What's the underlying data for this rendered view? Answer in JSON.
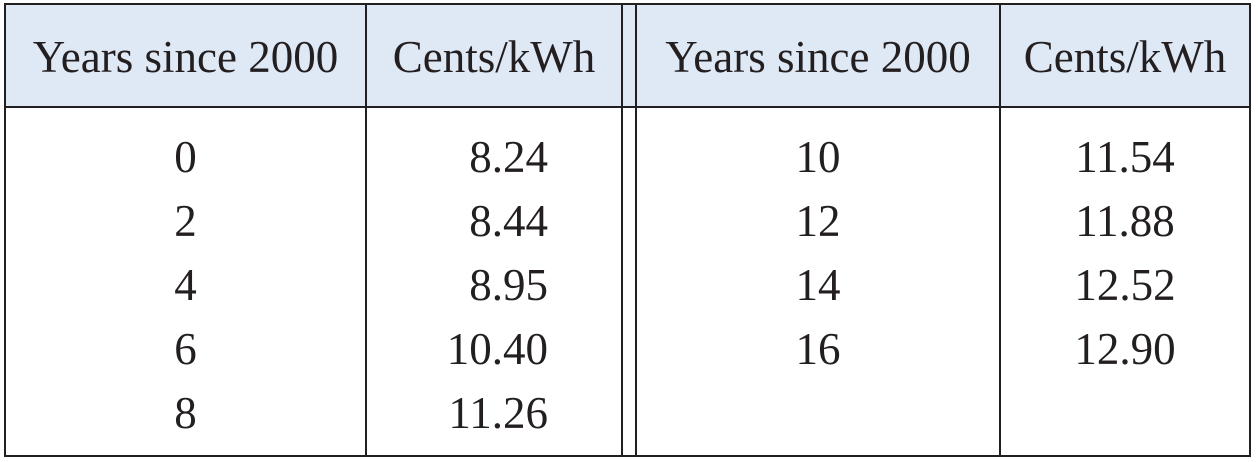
{
  "table": {
    "left": {
      "headers": [
        "Years since 2000",
        "Cents/kWh"
      ],
      "years": [
        "0",
        "2",
        "4",
        "6",
        "8"
      ],
      "cents": [
        "8.24",
        "8.44",
        "8.95",
        "10.40",
        "11.26"
      ]
    },
    "right": {
      "headers": [
        "Years since 2000",
        "Cents/kWh"
      ],
      "years": [
        "10",
        "12",
        "14",
        "16"
      ],
      "cents": [
        "11.54",
        "11.88",
        "12.52",
        "12.90"
      ]
    },
    "colors": {
      "header_background": "#dfe8f5",
      "rule": "#231f20",
      "text": "#231f20"
    }
  }
}
